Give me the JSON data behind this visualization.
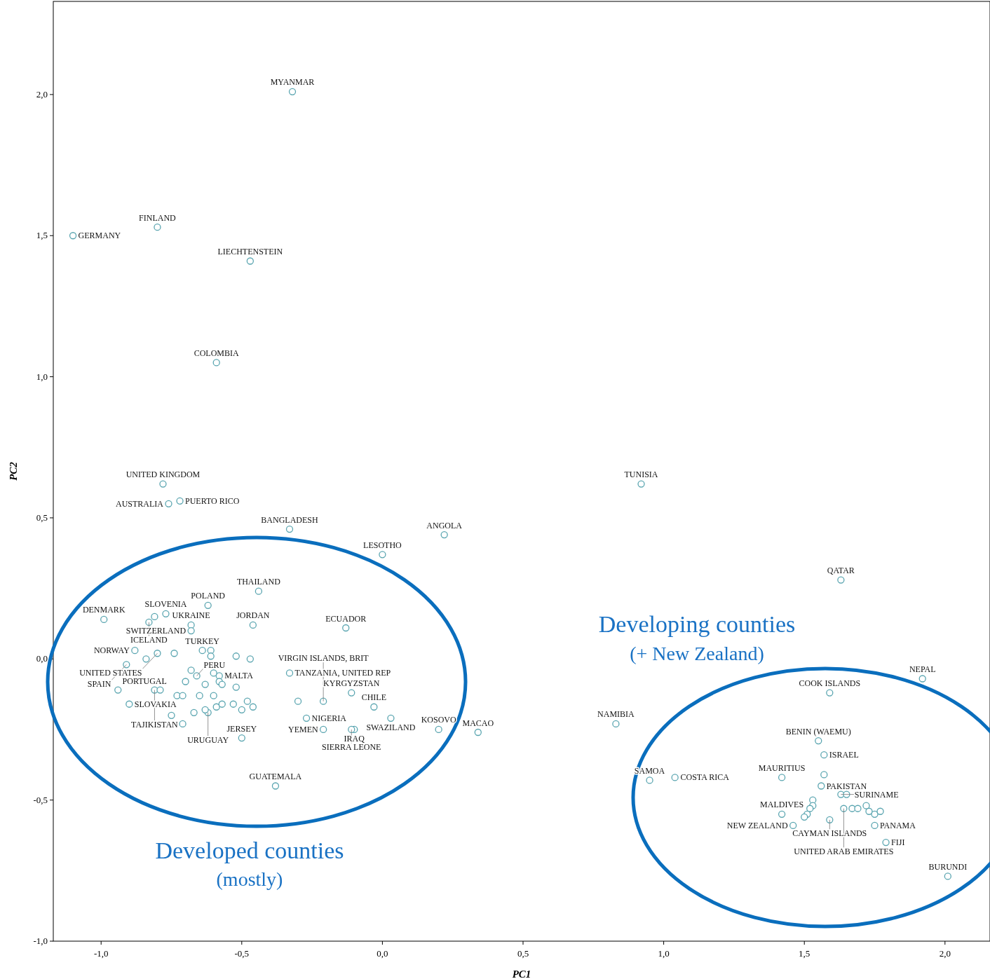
{
  "chart_data": {
    "type": "scatter",
    "xlabel": "PC1",
    "ylabel": "PC2",
    "xlim": [
      -1.17,
      2.16
    ],
    "ylim": [
      -1.0,
      2.33
    ],
    "xticks": [
      {
        "value": -1,
        "label": "-1,0"
      },
      {
        "value": -0.5,
        "label": "-0,5"
      },
      {
        "value": 0,
        "label": "0,0"
      },
      {
        "value": 0.5,
        "label": "0,5"
      },
      {
        "value": 1,
        "label": "1,0"
      },
      {
        "value": 1.5,
        "label": "1,5"
      },
      {
        "value": 2,
        "label": "2,0"
      }
    ],
    "yticks": [
      {
        "value": -1,
        "label": "-1,0"
      },
      {
        "value": -0.5,
        "label": "-0,5"
      },
      {
        "value": 0,
        "label": "0,0"
      },
      {
        "value": 0.5,
        "label": "0,5"
      },
      {
        "value": 1,
        "label": "1,0"
      },
      {
        "value": 1.5,
        "label": "1,5"
      },
      {
        "value": 2,
        "label": "2,0"
      }
    ],
    "grid": false,
    "marker": "circle",
    "color": "#5aa5b0",
    "x": [
      -0.32,
      -1.1,
      -0.8,
      -0.47,
      -0.59,
      -0.78,
      -0.72,
      -0.76,
      -0.33,
      0.22,
      0.0,
      0.92,
      1.63,
      -0.44,
      -0.13,
      1.92,
      1.59,
      0.83,
      0.34,
      0.2,
      -0.38,
      -0.5,
      0.95,
      1.04,
      1.55,
      1.57,
      1.42,
      1.56,
      1.63,
      1.64,
      1.75,
      1.59,
      1.42,
      1.46,
      1.79,
      2.01,
      -0.99,
      -0.62,
      -0.77,
      -0.68,
      -0.68,
      -0.46,
      -0.83,
      -0.88,
      -0.8,
      -0.91,
      -0.64,
      -0.33,
      -0.58,
      -0.66,
      -0.94,
      -0.81,
      -0.62,
      -0.9,
      -0.11,
      -0.21,
      -0.27,
      -0.03,
      0.03,
      -0.21,
      -0.1,
      -0.11,
      -0.81,
      -0.84,
      -0.74,
      -0.61,
      -0.61,
      -0.52,
      -0.47,
      -0.68,
      -0.7,
      -0.6,
      -0.58,
      -0.57,
      -0.52,
      -0.63,
      -0.79,
      -0.73,
      -0.71,
      -0.65,
      -0.6,
      -0.75,
      -0.71,
      -0.67,
      -0.63,
      -0.59,
      -0.57,
      -0.53,
      -0.5,
      -0.48,
      -0.46,
      -0.3,
      1.57,
      1.65,
      1.67,
      1.69,
      1.72,
      1.73,
      1.75,
      1.77,
      1.53,
      1.53,
      1.52,
      1.51,
      1.5
    ],
    "values": [
      2.01,
      1.5,
      1.53,
      1.41,
      1.05,
      0.62,
      0.56,
      0.55,
      0.46,
      0.44,
      0.37,
      0.62,
      0.28,
      0.24,
      0.11,
      -0.07,
      -0.12,
      -0.23,
      -0.26,
      -0.25,
      -0.45,
      -0.28,
      -0.43,
      -0.42,
      -0.29,
      -0.34,
      -0.42,
      -0.45,
      -0.48,
      -0.53,
      -0.59,
      -0.57,
      -0.55,
      -0.59,
      -0.65,
      -0.77,
      0.14,
      0.19,
      0.16,
      0.12,
      0.1,
      0.12,
      0.13,
      0.03,
      0.02,
      -0.02,
      0.03,
      -0.05,
      -0.06,
      -0.06,
      -0.11,
      -0.11,
      -0.19,
      -0.16,
      -0.12,
      -0.15,
      -0.21,
      -0.17,
      -0.21,
      -0.25,
      -0.25,
      -0.25,
      0.15,
      0.0,
      0.02,
      0.03,
      0.01,
      0.01,
      0.0,
      -0.04,
      -0.08,
      -0.05,
      -0.08,
      -0.09,
      -0.1,
      -0.09,
      -0.11,
      -0.13,
      -0.13,
      -0.13,
      -0.13,
      -0.2,
      -0.23,
      -0.19,
      -0.18,
      -0.17,
      -0.16,
      -0.16,
      -0.18,
      -0.15,
      -0.17,
      -0.15,
      -0.41,
      -0.48,
      -0.53,
      -0.53,
      -0.52,
      -0.54,
      -0.55,
      -0.54,
      -0.5,
      -0.52,
      -0.53,
      -0.55,
      -0.56
    ],
    "annotations": [
      {
        "text": "MYANMAR",
        "x": -0.32,
        "y": 2.01
      },
      {
        "text": "GERMANY",
        "x": -1.1,
        "y": 1.5
      },
      {
        "text": "FINLAND",
        "x": -0.8,
        "y": 1.53
      },
      {
        "text": "LIECHTENSTEIN",
        "x": -0.47,
        "y": 1.41
      },
      {
        "text": "COLOMBIA",
        "x": -0.59,
        "y": 1.05
      },
      {
        "text": "UNITED KINGDOM",
        "x": -0.78,
        "y": 0.62
      },
      {
        "text": "PUERTO RICO",
        "x": -0.72,
        "y": 0.56
      },
      {
        "text": "AUSTRALIA",
        "x": -0.76,
        "y": 0.55
      },
      {
        "text": "BANGLADESH",
        "x": -0.33,
        "y": 0.46
      },
      {
        "text": "ANGOLA",
        "x": 0.22,
        "y": 0.44
      },
      {
        "text": "LESOTHO",
        "x": 0.0,
        "y": 0.37
      },
      {
        "text": "TUNISIA",
        "x": 0.92,
        "y": 0.62
      },
      {
        "text": "QATAR",
        "x": 1.63,
        "y": 0.28
      },
      {
        "text": "THAILAND",
        "x": -0.44,
        "y": 0.24
      },
      {
        "text": "ECUADOR",
        "x": -0.13,
        "y": 0.11
      },
      {
        "text": "NEPAL",
        "x": 1.92,
        "y": -0.07
      },
      {
        "text": "COOK ISLANDS",
        "x": 1.59,
        "y": -0.12
      },
      {
        "text": "NAMIBIA",
        "x": 0.83,
        "y": -0.23
      },
      {
        "text": "MACAO",
        "x": 0.34,
        "y": -0.26
      },
      {
        "text": "KOSOVO",
        "x": 0.2,
        "y": -0.25
      },
      {
        "text": "GUATEMALA",
        "x": -0.38,
        "y": -0.45
      },
      {
        "text": "JERSEY",
        "x": -0.5,
        "y": -0.28
      },
      {
        "text": "SAMOA",
        "x": 0.95,
        "y": -0.43
      },
      {
        "text": "COSTA RICA",
        "x": 1.04,
        "y": -0.42
      },
      {
        "text": "BENIN (WAEMU)",
        "x": 1.55,
        "y": -0.29
      },
      {
        "text": "ISRAEL",
        "x": 1.57,
        "y": -0.34
      },
      {
        "text": "MAURITIUS",
        "x": 1.42,
        "y": -0.42
      },
      {
        "text": "PAKISTAN",
        "x": 1.56,
        "y": -0.45
      },
      {
        "text": "SURINAME",
        "x": 1.63,
        "y": -0.48
      },
      {
        "text": "UNITED ARAB EMIRATES",
        "x": 1.64,
        "y": -0.53
      },
      {
        "text": "PANAMA",
        "x": 1.75,
        "y": -0.59
      },
      {
        "text": "CAYMAN ISLANDS",
        "x": 1.59,
        "y": -0.57
      },
      {
        "text": "MALDIVES",
        "x": 1.42,
        "y": -0.55
      },
      {
        "text": "NEW ZEALAND",
        "x": 1.46,
        "y": -0.59
      },
      {
        "text": "FIJI",
        "x": 1.79,
        "y": -0.65
      },
      {
        "text": "BURUNDI",
        "x": 2.01,
        "y": -0.77
      },
      {
        "text": "DENMARK",
        "x": -0.99,
        "y": 0.14
      },
      {
        "text": "POLAND",
        "x": -0.62,
        "y": 0.19
      },
      {
        "text": "SLOVENIA",
        "x": -0.77,
        "y": 0.16
      },
      {
        "text": "UKRAINE",
        "x": -0.68,
        "y": 0.12
      },
      {
        "text": "SWITZERLAND",
        "x": -0.68,
        "y": 0.1
      },
      {
        "text": "JORDAN",
        "x": -0.46,
        "y": 0.12
      },
      {
        "text": "ICELAND",
        "x": -0.83,
        "y": 0.13
      },
      {
        "text": "NORWAY",
        "x": -0.88,
        "y": 0.03
      },
      {
        "text": "UNITED STATES",
        "x": -0.8,
        "y": 0.02
      },
      {
        "text": "SPAIN",
        "x": -0.91,
        "y": -0.02
      },
      {
        "text": "TURKEY",
        "x": -0.64,
        "y": 0.03
      },
      {
        "text": "TANZANIA, UNITED REP",
        "x": -0.33,
        "y": -0.05
      },
      {
        "text": "MALTA",
        "x": -0.58,
        "y": -0.06
      },
      {
        "text": "PERU",
        "x": -0.66,
        "y": -0.06
      },
      {
        "text": "PORTUGAL",
        "x": -0.94,
        "y": -0.11
      },
      {
        "text": "TAJIKISTAN",
        "x": -0.81,
        "y": -0.11
      },
      {
        "text": "URUGUAY",
        "x": -0.62,
        "y": -0.19
      },
      {
        "text": "SLOVAKIA",
        "x": -0.9,
        "y": -0.16
      },
      {
        "text": "KYRGYZSTAN",
        "x": -0.11,
        "y": -0.12
      },
      {
        "text": "VIRGIN ISLANDS, BRIT",
        "x": -0.21,
        "y": -0.15
      },
      {
        "text": "NIGERIA",
        "x": -0.27,
        "y": -0.21
      },
      {
        "text": "CHILE",
        "x": -0.03,
        "y": -0.17
      },
      {
        "text": "SWAZILAND",
        "x": 0.03,
        "y": -0.21
      },
      {
        "text": "YEMEN",
        "x": -0.21,
        "y": -0.25
      },
      {
        "text": "IRAQ",
        "x": -0.1,
        "y": -0.25
      },
      {
        "text": "SIERRA LEONE",
        "x": -0.11,
        "y": -0.25
      },
      "Developed counties",
      "(mostly)",
      "Developing counties",
      "(+ New Zealand)"
    ]
  }
}
